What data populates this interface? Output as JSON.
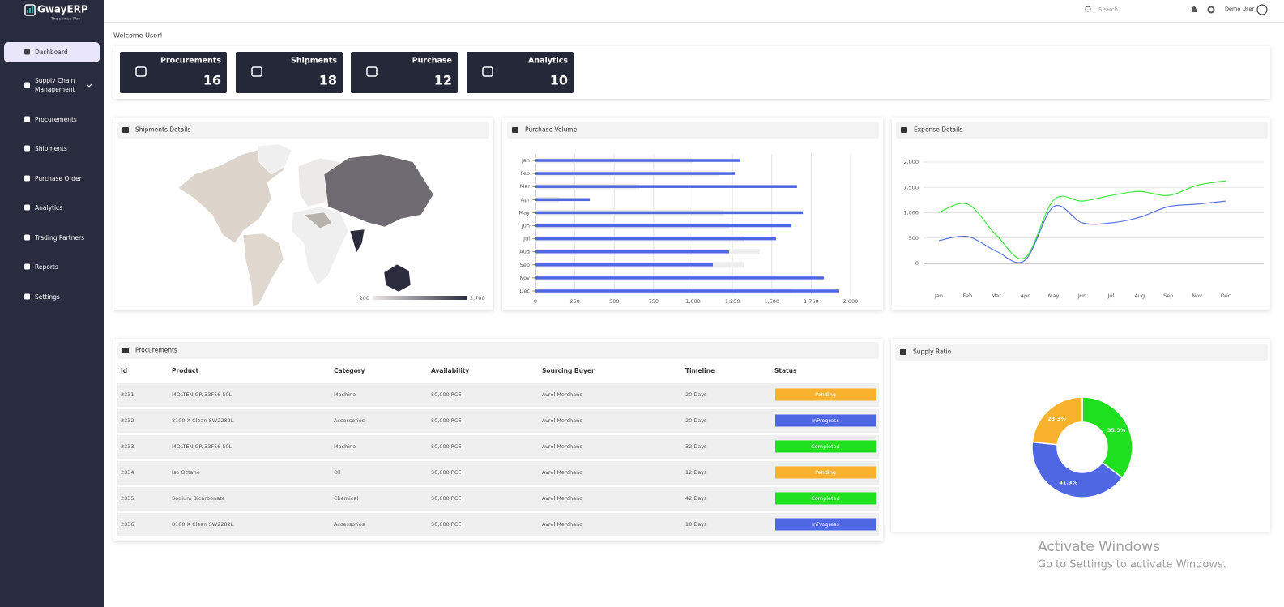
{
  "sidebar": {
    "logo": "GwayERP",
    "tagline": "The unique Way",
    "menu": [
      "Dashboard",
      "Supply Chain Management",
      "Procurements",
      "Shipments",
      "Purchase Order",
      "Analytics",
      "Trading Partners",
      "Reports",
      "Settings"
    ]
  },
  "header": {
    "search": "Search",
    "user": "Demo User"
  },
  "welcome": "Welcome User!",
  "cards": [
    {
      "label": "Procurements",
      "value": 16
    },
    {
      "label": "Shipments",
      "value": 18
    },
    {
      "label": "Purchase",
      "value": 12
    },
    {
      "label": "Analytics",
      "value": 10
    }
  ],
  "shipments_map": {
    "title": "Shipments Details",
    "legend_ticks": [
      200,
      {
        "value": 2700,
        "label": "2,700"
      }
    ],
    "colors": [
      "#ece8e4",
      "#2a2c3e"
    ]
  },
  "purchase_volume": {
    "type": "bar",
    "title": "Purchase Volume",
    "categories": [
      "Jan",
      "Feb",
      "Mar",
      "Apr",
      "May",
      "Jun",
      "Jul",
      "Aug",
      "Sep",
      "Nov",
      "Dec"
    ],
    "series": [
      {
        "color": "#ededed",
        "values": [
          1000,
          1167,
          658,
          150,
          1193,
          1229,
          1326,
          1424,
          1326,
          1527,
          1625
        ]
      },
      {
        "color": "#4f67e3",
        "values": [
          1296,
          1265,
          1660,
          345,
          1697,
          1625,
          1527,
          1229,
          1126,
          1830,
          1928
        ]
      }
    ],
    "xlim": [
      0,
      2000
    ],
    "xticks": [
      0,
      250,
      500,
      750,
      {
        "value": 1000,
        "label": "1,000"
      },
      {
        "value": 1250,
        "label": "1,250"
      },
      {
        "value": 1500,
        "label": "1,500"
      },
      {
        "value": 1750,
        "label": "1,750"
      },
      {
        "value": 2000,
        "label": "2,000"
      }
    ],
    "grid": true
  },
  "expense_details": {
    "type": "line",
    "title": "Expense Details",
    "categories": [
      "Jan",
      "Feb",
      "Mar",
      "Apr",
      "May",
      "Jun",
      "Jul",
      "Aug",
      "Sep",
      "Nov",
      "Dec"
    ],
    "series": [
      {
        "color": "#3ee83e",
        "values": [
          1008,
          1170,
          560,
          110,
          1250,
          1230,
          1340,
          1420,
          1340,
          1540,
          1630
        ]
      },
      {
        "color": "#5a74e0",
        "values": [
          450,
          530,
          240,
          60,
          1120,
          800,
          800,
          910,
          1120,
          1170,
          1230
        ]
      }
    ],
    "ylim": [
      0,
      2000
    ],
    "yticks": [
      0,
      500,
      {
        "value": 1000,
        "label": "1,000"
      },
      {
        "value": 1500,
        "label": "1,500"
      },
      {
        "value": 2000,
        "label": "2,000"
      }
    ],
    "grid": true
  },
  "procurements": {
    "title": "Procurements",
    "columns": [
      "Id",
      "Product",
      "Category",
      "Availability",
      "Sourcing Buyer",
      "Timeline",
      "Status"
    ],
    "rows": [
      [
        2331,
        "MOLTEN GR 33F56 50L",
        "Machine",
        "50,000 PCE",
        "Avrel Merchano",
        "20 Days",
        "Pending"
      ],
      [
        2332,
        "8100 X Clean SW2282L",
        "Accessories",
        "50,000 PCE",
        "Avrel Merchano",
        "20 Days",
        "InProgress"
      ],
      [
        2333,
        "MOLTEN GR 33F56 50L",
        "Machine",
        "50,000 PCE",
        "Avrel Merchano",
        "32 Days",
        "Completed"
      ],
      [
        2334,
        "Iso Octane",
        "Oil",
        "50,000 PCE",
        "Avrel Merchano",
        "12 Days",
        "Pending"
      ],
      [
        2335,
        "Sodium Bicarbonate",
        "Chemical",
        "50,000 PCE",
        "Avrel Merchano",
        "42 Days",
        "Completed"
      ],
      [
        2336,
        "8100 X Clean SW2282L",
        "Accessories",
        "50,000 PCE",
        "Avrel Merchano",
        "10 Days",
        "InProgress"
      ]
    ],
    "status_colors": {
      "Pending": "#f8b22d",
      "InProgress": "#4f67e3",
      "Completed": "#1fe01f"
    }
  },
  "supply_ratio": {
    "type": "pie",
    "title": "Supply Ratio",
    "values": [
      35.3,
      41.3,
      23.3
    ],
    "value_labels": [
      "35.3%",
      "41.3%",
      "23.3%"
    ],
    "colors": [
      "#1fe01f",
      "#4f67e3",
      "#f8b22d"
    ]
  },
  "watermark": {
    "title": "Activate Windows",
    "text": "Go to Settings to activate Windows."
  }
}
